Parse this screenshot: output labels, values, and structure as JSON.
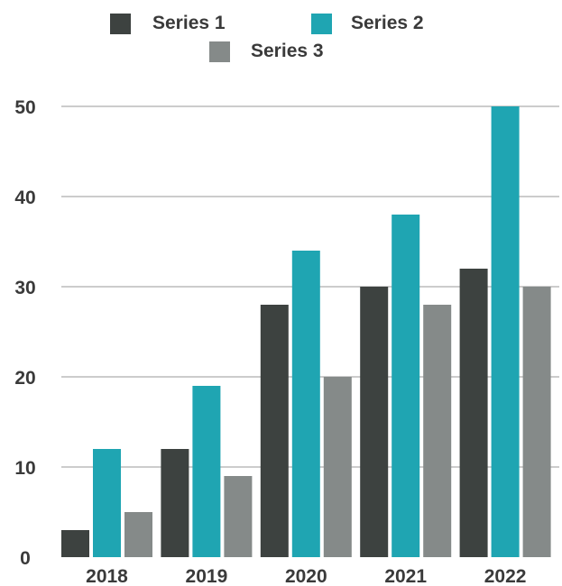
{
  "chart_data": {
    "type": "bar",
    "categories": [
      "2018",
      "2019",
      "2020",
      "2021",
      "2022"
    ],
    "series": [
      {
        "name": "Series 1",
        "color": "#3d4240",
        "values": [
          3,
          12,
          28,
          30,
          32
        ]
      },
      {
        "name": "Series 2",
        "color": "#1fa5b2",
        "values": [
          12,
          19,
          34,
          38,
          50
        ]
      },
      {
        "name": "Series 3",
        "color": "#858a89",
        "values": [
          5,
          9,
          20,
          28,
          30
        ]
      }
    ],
    "yticks": [
      "0",
      "10",
      "20",
      "30",
      "40",
      "50"
    ],
    "ylim": [
      0,
      50
    ],
    "grid": true,
    "legend": "top",
    "title": "",
    "xlabel": "",
    "ylabel": ""
  }
}
